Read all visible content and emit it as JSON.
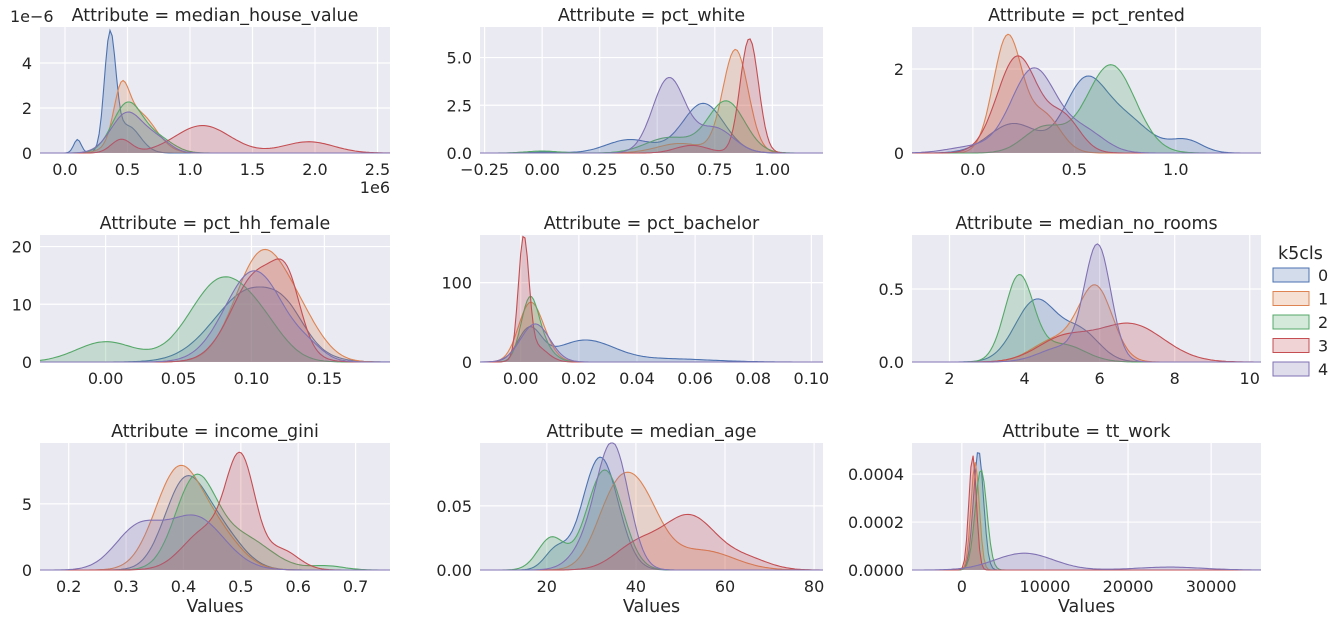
{
  "figure": {
    "xlabel": "Values",
    "legend_title": "k5cls",
    "legend_placement": "right"
  },
  "colors": {
    "0": "#4c72b0",
    "1": "#dd8452",
    "2": "#55a868",
    "3": "#c44e52",
    "4": "#8172b3"
  },
  "legend": {
    "title": "k5cls",
    "labels": [
      "0",
      "1",
      "2",
      "3",
      "4"
    ]
  },
  "chart_data": [
    {
      "type": "area",
      "title": "Attribute = median_house_value",
      "xlabel": "",
      "ylabel": "",
      "xlim": [
        -0.2,
        2.6
      ],
      "ylim": [
        0,
        5.6
      ],
      "xticks": [
        0.0,
        0.5,
        1.0,
        1.5,
        2.0,
        2.5
      ],
      "xticklabels": [
        "0.0",
        "0.5",
        "1.0",
        "1.5",
        "2.0",
        "2.5"
      ],
      "yticks": [
        0,
        2,
        4
      ],
      "yticklabels": [
        "0",
        "2",
        "4"
      ],
      "x_offset_text": "1e6",
      "y_offset_text": "1e−6",
      "series": [
        {
          "name": "0",
          "peaks": [
            [
              0.1,
              0.03,
              0.6
            ],
            [
              0.36,
              0.045,
              5.0
            ],
            [
              0.5,
              0.1,
              1.2
            ]
          ]
        },
        {
          "name": "1",
          "peaks": [
            [
              0.45,
              0.06,
              2.0
            ],
            [
              0.58,
              0.14,
              1.8
            ]
          ]
        },
        {
          "name": "2",
          "peaks": [
            [
              0.5,
              0.12,
              2.2
            ],
            [
              0.75,
              0.12,
              0.6
            ]
          ]
        },
        {
          "name": "3",
          "peaks": [
            [
              0.45,
              0.08,
              0.6
            ],
            [
              1.1,
              0.22,
              1.22
            ],
            [
              1.95,
              0.2,
              0.5
            ]
          ]
        },
        {
          "name": "4",
          "peaks": [
            [
              0.5,
              0.13,
              1.8
            ],
            [
              0.75,
              0.1,
              0.5
            ]
          ]
        }
      ]
    },
    {
      "type": "area",
      "title": "Attribute = pct_white",
      "xlabel": "",
      "ylabel": "",
      "xlim": [
        -0.27,
        1.22
      ],
      "ylim": [
        0,
        6.6
      ],
      "xticks": [
        -0.25,
        0.0,
        0.25,
        0.5,
        0.75,
        1.0
      ],
      "xticklabels": [
        "−0.25",
        "0.00",
        "0.25",
        "0.50",
        "0.75",
        "1.00"
      ],
      "yticks": [
        0.0,
        2.5,
        5.0
      ],
      "yticklabels": [
        "0.0",
        "2.5",
        "5.0"
      ],
      "series": [
        {
          "name": "0",
          "peaks": [
            [
              0.38,
              0.1,
              0.7
            ],
            [
              0.7,
              0.09,
              2.6
            ],
            [
              0.02,
              0.06,
              0.05
            ]
          ]
        },
        {
          "name": "1",
          "peaks": [
            [
              0.6,
              0.1,
              0.5
            ],
            [
              0.84,
              0.055,
              5.4
            ]
          ]
        },
        {
          "name": "2",
          "peaks": [
            [
              0.0,
              0.07,
              0.1
            ],
            [
              0.55,
              0.1,
              0.8
            ],
            [
              0.8,
              0.08,
              2.7
            ]
          ]
        },
        {
          "name": "3",
          "peaks": [
            [
              0.65,
              0.07,
              0.4
            ],
            [
              0.9,
              0.04,
              6.0
            ]
          ]
        },
        {
          "name": "4",
          "peaks": [
            [
              0.55,
              0.07,
              3.9
            ],
            [
              0.75,
              0.08,
              1.3
            ]
          ]
        }
      ]
    },
    {
      "type": "area",
      "title": "Attribute = pct_rented",
      "xlabel": "",
      "ylabel": "",
      "xlim": [
        -0.3,
        1.42
      ],
      "ylim": [
        0,
        3.0
      ],
      "xticks": [
        0.0,
        0.5,
        1.0
      ],
      "xticklabels": [
        "0.0",
        "0.5",
        "1.0"
      ],
      "yticks": [
        0,
        2
      ],
      "yticklabels": [
        "0",
        "2"
      ],
      "series": [
        {
          "name": "0",
          "peaks": [
            [
              0.2,
              0.12,
              0.7
            ],
            [
              0.55,
              0.1,
              1.6
            ],
            [
              0.75,
              0.12,
              0.8
            ],
            [
              1.05,
              0.08,
              0.3
            ]
          ]
        },
        {
          "name": "1",
          "peaks": [
            [
              0.17,
              0.07,
              2.75
            ],
            [
              0.35,
              0.08,
              0.9
            ]
          ]
        },
        {
          "name": "2",
          "peaks": [
            [
              0.35,
              0.1,
              0.6
            ],
            [
              0.68,
              0.12,
              2.1
            ]
          ]
        },
        {
          "name": "3",
          "peaks": [
            [
              0.22,
              0.1,
              2.3
            ],
            [
              0.45,
              0.08,
              0.8
            ]
          ]
        },
        {
          "name": "4",
          "peaks": [
            [
              0.0,
              0.12,
              0.15
            ],
            [
              0.3,
              0.11,
              2.0
            ],
            [
              0.55,
              0.1,
              0.5
            ]
          ]
        }
      ]
    },
    {
      "type": "area",
      "title": "Attribute = pct_hh_female",
      "xlabel": "",
      "ylabel": "",
      "xlim": [
        -0.045,
        0.195
      ],
      "ylim": [
        0,
        22
      ],
      "xticks": [
        0.0,
        0.05,
        0.1,
        0.15
      ],
      "xticklabels": [
        "0.00",
        "0.05",
        "0.10",
        "0.15"
      ],
      "yticks": [
        0,
        10,
        20
      ],
      "yticklabels": [
        "0",
        "10",
        "20"
      ],
      "series": [
        {
          "name": "0",
          "peaks": [
            [
              0.1,
              0.025,
              12.5
            ],
            [
              0.125,
              0.012,
              3.0
            ]
          ]
        },
        {
          "name": "1",
          "peaks": [
            [
              0.107,
              0.018,
              18.5
            ],
            [
              0.135,
              0.015,
              5.0
            ]
          ]
        },
        {
          "name": "2",
          "peaks": [
            [
              0.0,
              0.02,
              3.5
            ],
            [
              0.08,
              0.022,
              14.3
            ],
            [
              0.11,
              0.015,
              3.0
            ]
          ]
        },
        {
          "name": "3",
          "peaks": [
            [
              0.105,
              0.018,
              15.5
            ],
            [
              0.125,
              0.009,
              8.0
            ]
          ]
        },
        {
          "name": "4",
          "peaks": [
            [
              0.102,
              0.02,
              15.8
            ],
            [
              0.14,
              0.01,
              1.5
            ]
          ]
        }
      ]
    },
    {
      "type": "area",
      "title": "Attribute = pct_bachelor",
      "xlabel": "",
      "ylabel": "",
      "xlim": [
        -0.014,
        0.104
      ],
      "ylim": [
        0,
        160
      ],
      "xticks": [
        0.0,
        0.02,
        0.04,
        0.06,
        0.08,
        0.1
      ],
      "xticklabels": [
        "0.00",
        "0.02",
        "0.04",
        "0.06",
        "0.08",
        "0.10"
      ],
      "yticks": [
        0,
        100
      ],
      "yticklabels": [
        "0",
        "100"
      ],
      "series": [
        {
          "name": "0",
          "peaks": [
            [
              0.003,
              0.004,
              40
            ],
            [
              0.022,
              0.01,
              27
            ],
            [
              0.05,
              0.015,
              4
            ]
          ]
        },
        {
          "name": "1",
          "peaks": [
            [
              0.003,
              0.004,
              68
            ],
            [
              0.008,
              0.004,
              15
            ]
          ]
        },
        {
          "name": "2",
          "peaks": [
            [
              0.003,
              0.003,
              70
            ],
            [
              0.007,
              0.004,
              20
            ]
          ]
        },
        {
          "name": "3",
          "peaks": [
            [
              0.001,
              0.0018,
              148
            ],
            [
              0.005,
              0.004,
              20
            ]
          ]
        },
        {
          "name": "4",
          "peaks": [
            [
              0.005,
              0.005,
              48
            ]
          ]
        }
      ]
    },
    {
      "type": "area",
      "title": "Attribute = median_no_rooms",
      "xlabel": "",
      "ylabel": "",
      "xlim": [
        1.0,
        10.3
      ],
      "ylim": [
        0,
        0.87
      ],
      "xticks": [
        2,
        4,
        6,
        8,
        10
      ],
      "xticklabels": [
        "2",
        "4",
        "6",
        "8",
        "10"
      ],
      "yticks": [
        0.0,
        0.5
      ],
      "yticklabels": [
        "0.0",
        "0.5"
      ],
      "series": [
        {
          "name": "0",
          "peaks": [
            [
              4.3,
              0.55,
              0.42
            ],
            [
              5.5,
              0.5,
              0.2
            ]
          ]
        },
        {
          "name": "1",
          "peaks": [
            [
              4.8,
              0.6,
              0.15
            ],
            [
              5.9,
              0.45,
              0.5
            ]
          ]
        },
        {
          "name": "2",
          "peaks": [
            [
              3.85,
              0.38,
              0.58
            ],
            [
              5.0,
              0.6,
              0.12
            ]
          ]
        },
        {
          "name": "3",
          "peaks": [
            [
              5.0,
              0.7,
              0.15
            ],
            [
              6.8,
              0.9,
              0.26
            ]
          ]
        },
        {
          "name": "4",
          "peaks": [
            [
              5.95,
              0.35,
              0.78
            ],
            [
              5.0,
              0.6,
              0.1
            ]
          ]
        }
      ]
    },
    {
      "type": "area",
      "title": "Attribute = income_gini",
      "xlabel": "Values",
      "ylabel": "",
      "xlim": [
        0.15,
        0.76
      ],
      "ylim": [
        0,
        9.6
      ],
      "xticks": [
        0.2,
        0.3,
        0.4,
        0.5,
        0.6,
        0.7
      ],
      "xticklabels": [
        "0.2",
        "0.3",
        "0.4",
        "0.5",
        "0.6",
        "0.7"
      ],
      "yticks": [
        0,
        5
      ],
      "yticklabels": [
        "0",
        "5"
      ],
      "series": [
        {
          "name": "0",
          "peaks": [
            [
              0.4,
              0.035,
              6.0
            ],
            [
              0.46,
              0.04,
              3.0
            ]
          ]
        },
        {
          "name": "1",
          "peaks": [
            [
              0.39,
              0.04,
              7.3
            ],
            [
              0.46,
              0.04,
              2.5
            ]
          ]
        },
        {
          "name": "2",
          "peaks": [
            [
              0.42,
              0.035,
              6.5
            ],
            [
              0.5,
              0.05,
              2.5
            ],
            [
              0.65,
              0.03,
              0.3
            ]
          ]
        },
        {
          "name": "3",
          "peaks": [
            [
              0.44,
              0.04,
              3.0
            ],
            [
              0.5,
              0.025,
              7.8
            ],
            [
              0.57,
              0.03,
              1.5
            ]
          ]
        },
        {
          "name": "4",
          "peaks": [
            [
              0.32,
              0.04,
              3.0
            ],
            [
              0.42,
              0.05,
              4.0
            ]
          ]
        }
      ]
    },
    {
      "type": "area",
      "title": "Attribute = median_age",
      "xlabel": "Values",
      "ylabel": "",
      "xlim": [
        5,
        82
      ],
      "ylim": [
        0,
        0.099
      ],
      "xticks": [
        20,
        40,
        60,
        80
      ],
      "xticklabels": [
        "20",
        "40",
        "60",
        "80"
      ],
      "yticks": [
        0.0,
        0.05
      ],
      "yticklabels": [
        "0.00",
        "0.05"
      ],
      "series": [
        {
          "name": "0",
          "peaks": [
            [
              22,
              2.5,
              0.015
            ],
            [
              32,
              4,
              0.088
            ]
          ]
        },
        {
          "name": "1",
          "peaks": [
            [
              34,
              4,
              0.03
            ],
            [
              40,
              5,
              0.062
            ],
            [
              55,
              7,
              0.015
            ]
          ]
        },
        {
          "name": "2",
          "peaks": [
            [
              21,
              3,
              0.025
            ],
            [
              33,
              4,
              0.078
            ]
          ]
        },
        {
          "name": "3",
          "peaks": [
            [
              40,
              5,
              0.018
            ],
            [
              52,
              6,
              0.042
            ],
            [
              65,
              5,
              0.008
            ]
          ]
        },
        {
          "name": "4",
          "peaks": [
            [
              35,
              3.5,
              0.09
            ],
            [
              30,
              4,
              0.02
            ]
          ]
        }
      ]
    },
    {
      "type": "area",
      "title": "Attribute = tt_work",
      "xlabel": "Values",
      "ylabel": "",
      "xlim": [
        -6000,
        36000
      ],
      "ylim": [
        0,
        0.00053
      ],
      "xticks": [
        0,
        10000,
        20000,
        30000
      ],
      "xticklabels": [
        "0",
        "10000",
        "20000",
        "30000"
      ],
      "yticks": [
        0.0,
        0.0002,
        0.0004
      ],
      "yticklabels": [
        "0.0000",
        "0.0002",
        "0.0004"
      ],
      "series": [
        {
          "name": "0",
          "peaks": [
            [
              2000,
              600,
              0.0005
            ]
          ]
        },
        {
          "name": "1",
          "peaks": [
            [
              1600,
              500,
              0.00045
            ]
          ]
        },
        {
          "name": "2",
          "peaks": [
            [
              2300,
              700,
              0.00042
            ]
          ]
        },
        {
          "name": "3",
          "peaks": [
            [
              1300,
              450,
              0.00048
            ]
          ]
        },
        {
          "name": "4",
          "peaks": [
            [
              7500,
              3500,
              7e-05
            ],
            [
              25000,
              4000,
              1.2e-05
            ]
          ]
        }
      ]
    }
  ]
}
